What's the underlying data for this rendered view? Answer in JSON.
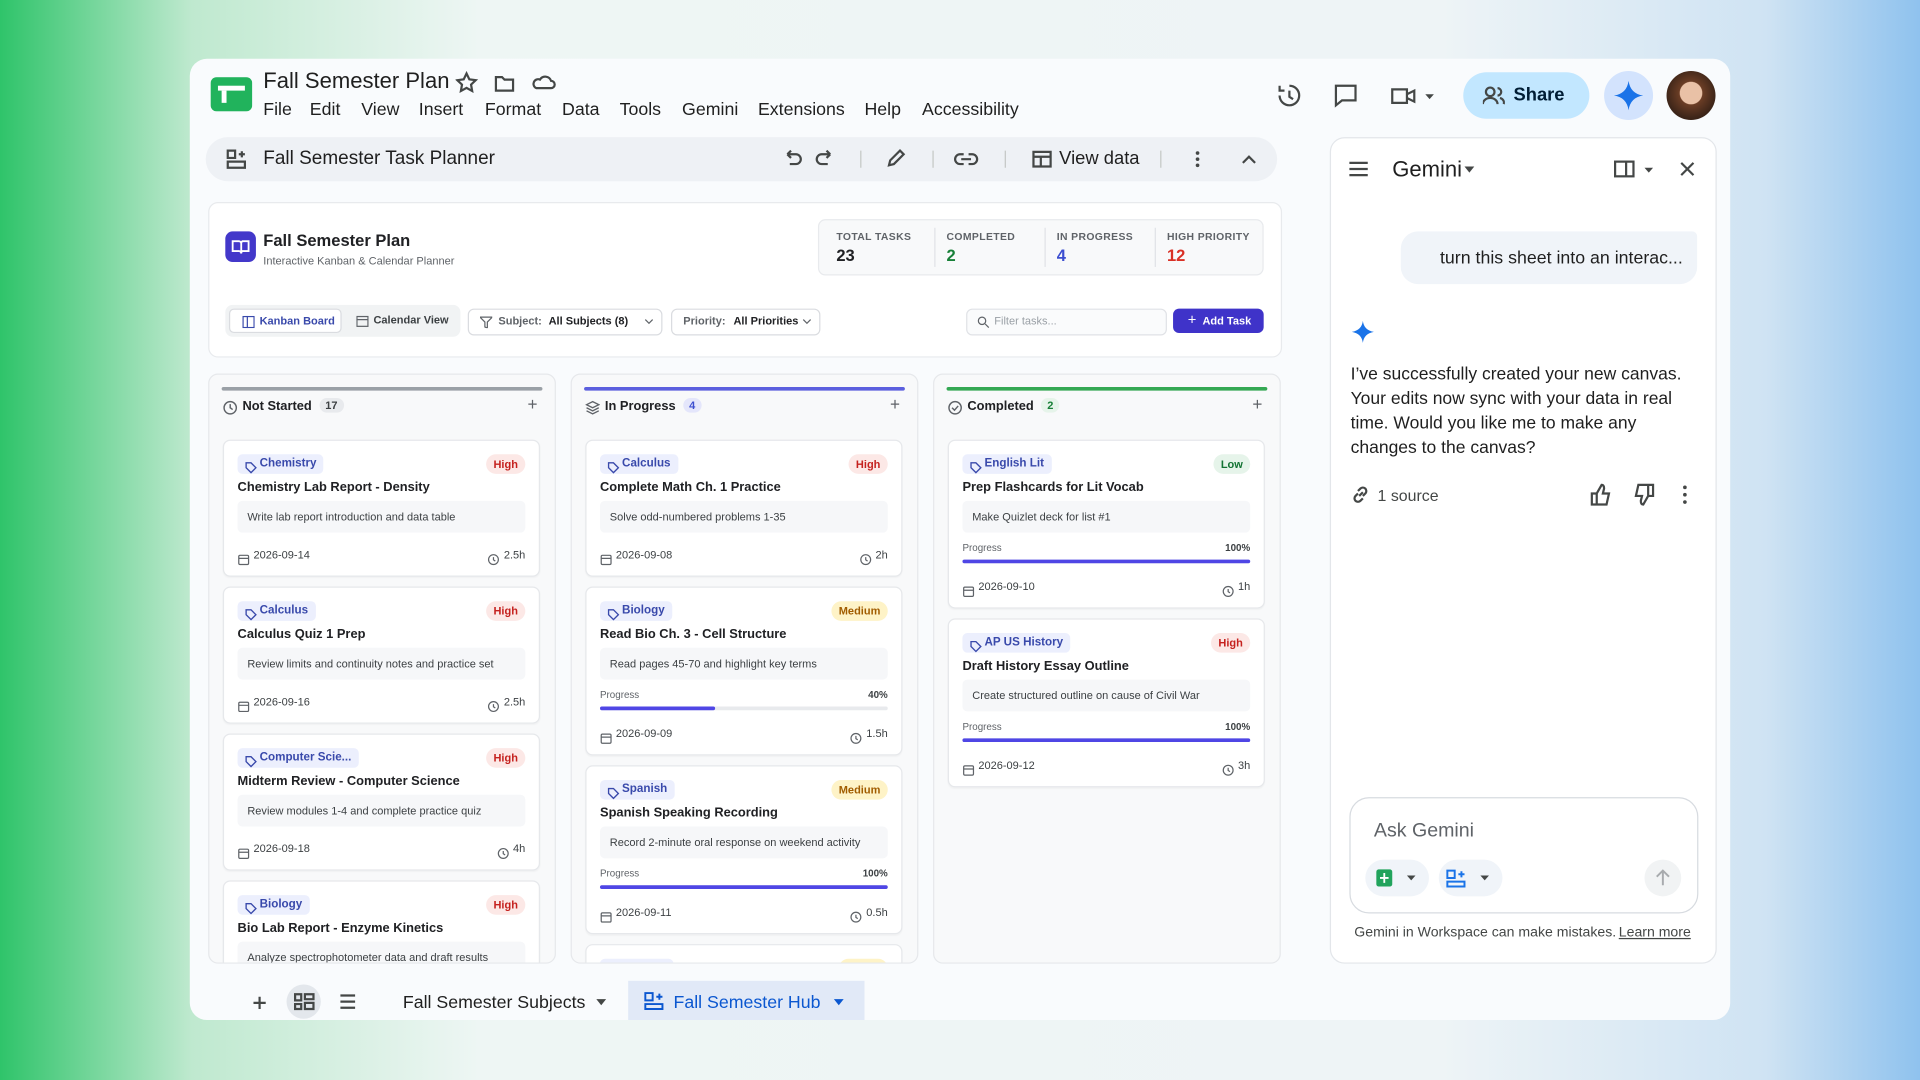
{
  "header": {
    "doc_title": "Fall Semester Plan",
    "menu": [
      "File",
      "Edit",
      "View",
      "Insert",
      "Format",
      "Data",
      "Tools",
      "Gemini",
      "Extensions",
      "Help",
      "Accessibility"
    ],
    "share": "Share"
  },
  "toolbar": {
    "title": "Fall Semester Task Planner",
    "view_data": "View data"
  },
  "app": {
    "title": "Fall Semester Plan",
    "subtitle": "Interactive Kanban & Calendar Planner",
    "stats": [
      {
        "label": "TOTAL TASKS",
        "value": 23
      },
      {
        "label": "COMPLETED",
        "value": 2
      },
      {
        "label": "IN PROGRESS",
        "value": 4
      },
      {
        "label": "HIGH PRIORITY",
        "value": 12
      }
    ],
    "views": [
      "Kanban Board",
      "Calendar View"
    ],
    "filters": {
      "subject_label": "Subject:",
      "subject_value": "All Subjects (8)",
      "priority_label": "Priority:",
      "priority_value": "All Priorities",
      "search_placeholder": "Filter tasks...",
      "add": "Add Task"
    },
    "progress_text": "Progress",
    "columns": [
      {
        "name": "Not Started",
        "count": 17,
        "cards": [
          {
            "subject": "Chemistry",
            "priority": "High",
            "title": "Chemistry Lab Report - Density",
            "description": "Write lab report introduction and data table",
            "date": "2026-09-14",
            "duration": "2.5h"
          },
          {
            "subject": "Calculus",
            "priority": "High",
            "title": "Calculus Quiz 1 Prep",
            "description": "Review limits and continuity notes and practice set",
            "date": "2026-09-16",
            "duration": "2.5h"
          },
          {
            "subject": "Computer Scie...",
            "priority": "High",
            "title": "Midterm Review - Computer Science",
            "description": "Review modules 1-4 and complete practice quiz",
            "date": "2026-09-18",
            "duration": "4h"
          },
          {
            "subject": "Biology",
            "priority": "High",
            "title": "Bio Lab Report - Enzyme Kinetics",
            "description": "Analyze spectrophotometer data and draft results"
          }
        ]
      },
      {
        "name": "In Progress",
        "count": 4,
        "cards": [
          {
            "subject": "Calculus",
            "priority": "High",
            "title": "Complete Math Ch. 1 Practice",
            "description": "Solve odd-numbered problems 1-35",
            "date": "2026-09-08",
            "duration": "2h"
          },
          {
            "subject": "Biology",
            "priority": "Medium",
            "title": "Read Bio Ch. 3 - Cell Structure",
            "description": "Read pages 45-70 and highlight key terms",
            "progress": 40,
            "progress_label": "40%",
            "date": "2026-09-09",
            "duration": "1.5h"
          },
          {
            "subject": "Spanish",
            "priority": "Medium",
            "title": "Spanish Speaking Recording",
            "description": "Record 2-minute oral response on weekend activity",
            "progress": 100,
            "progress_label": "100%",
            "date": "2026-09-11",
            "duration": "0.5h"
          }
        ]
      },
      {
        "name": "Completed",
        "count": 2,
        "cards": [
          {
            "subject": "English Lit",
            "priority": "Low",
            "title": "Prep Flashcards for Lit Vocab",
            "description": "Make Quizlet deck for list #1",
            "progress": 100,
            "progress_label": "100%",
            "date": "2026-09-10",
            "duration": "1h"
          },
          {
            "subject": "AP US History",
            "priority": "High",
            "title": "Draft History Essay Outline",
            "description": "Create structured outline on cause of Civil War",
            "progress": 100,
            "progress_label": "100%",
            "date": "2026-09-12",
            "duration": "3h"
          }
        ]
      }
    ]
  },
  "gemini": {
    "title": "Gemini",
    "user_message": "turn this sheet into an interac...",
    "response": "I’ve successfully created your new canvas. Your edits now sync with your data in real time. Would you like me to make any changes to the canvas?",
    "sources": "1 source",
    "input_placeholder": "Ask Gemini",
    "disclaimer": "Gemini in Workspace can make mistakes.",
    "learn_more": "Learn more"
  },
  "sheets": {
    "tabs": [
      "Fall Semester Subjects",
      "Fall Semester Hub"
    ]
  }
}
